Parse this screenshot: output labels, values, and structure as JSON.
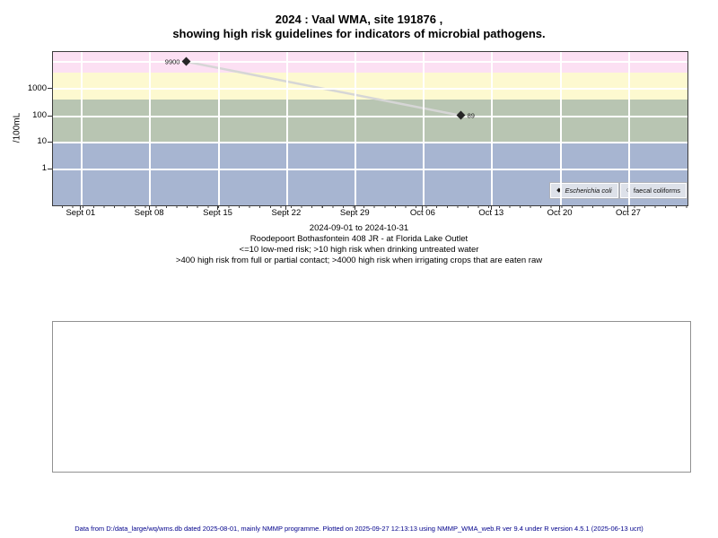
{
  "title": {
    "line1": "2024 : Vaal WMA, site 191876 ,",
    "line2": "showing high risk guidelines for indicators of microbial pathogens."
  },
  "subtitle": {
    "line1": "2024-09-01 to 2024-10-31",
    "line2": "Roodepoort Bothasfontein 408 JR - at Florida Lake Outlet",
    "line3": "<=10 low-med risk; >10 high risk when drinking untreated water",
    "line4": ">400 high risk from full or partial contact; >4000 high risk when irrigating crops that are eaten raw"
  },
  "footer": {
    "text": "Data from D:/data_large/wq/wms.db dated 2025-08-01, mainly NMMP programme. Plotted on 2025-09-27 12:13:13 using NMMP_WMA_web.R ver 9.4 under R version 4.5.1 (2025-06-13 ucrt)",
    "color": "#00008B"
  },
  "chart_data": {
    "type": "scatter",
    "title": "2024 : Vaal WMA, site 191876 , showing high risk guidelines for indicators of microbial pathogens.",
    "xlabel": "",
    "ylabel": "/100mL",
    "y_scale": "log10",
    "x_range": "2024-09-01 to 2024-10-31",
    "y_ticks": [
      {
        "label": "1000",
        "pct": 24.0
      },
      {
        "label": "100",
        "pct": 42.1
      },
      {
        "label": "10",
        "pct": 58.8
      },
      {
        "label": "1",
        "pct": 76.6
      }
    ],
    "x_ticks": [
      {
        "label": "Sept 01",
        "pct": 4.5
      },
      {
        "label": "Sept 08",
        "pct": 15.3
      },
      {
        "label": "Sept 15",
        "pct": 26.1
      },
      {
        "label": "Sept 22",
        "pct": 36.9
      },
      {
        "label": "Sept 29",
        "pct": 47.7
      },
      {
        "label": "Oct 06",
        "pct": 58.4
      },
      {
        "label": "Oct 13",
        "pct": 69.2
      },
      {
        "label": "Oct 20",
        "pct": 80.0
      },
      {
        "label": "Oct 27",
        "pct": 90.8
      }
    ],
    "h_gridlines_pct": [
      6.4,
      24.0,
      42.1,
      58.8,
      76.6
    ],
    "v_gridlines_pct": [
      4.5,
      15.3,
      26.1,
      36.9,
      47.7,
      58.4,
      69.2,
      80.0,
      90.8
    ],
    "bands": [
      {
        "name": "above-4000-irrigation-risk",
        "range": ">4000",
        "color": "#fce0f3",
        "top_pct": 0,
        "height_pct": 13.5
      },
      {
        "name": "400-4000-contact-risk",
        "range": "400-4000",
        "color": "#fdf9d0",
        "top_pct": 13.5,
        "height_pct": 17.5
      },
      {
        "name": "10-400-drinking-risk",
        "range": "10-400",
        "color": "#b8c5b2",
        "top_pct": 31.0,
        "height_pct": 27.8
      },
      {
        "name": "below-10-low-med-risk",
        "range": "<=10",
        "color": "#a7b5d1",
        "top_pct": 58.8,
        "height_pct": 41.2
      }
    ],
    "line_color": "#d6d6d6",
    "series": [
      {
        "name": "Escherichia coli",
        "marker": "filled-diamond",
        "points": [
          {
            "date": "2024-09-12",
            "value": 9900,
            "label": "9900",
            "x_pct": 21.0,
            "y_pct": 6.3,
            "label_side": "left"
          },
          {
            "date": "2024-10-10",
            "value": 89,
            "label": "89",
            "x_pct": 64.3,
            "y_pct": 41.5,
            "label_side": "right"
          }
        ]
      },
      {
        "name": "faecal coliforms",
        "marker": "open-circle",
        "points": []
      }
    ],
    "legend": [
      {
        "marker": "◆",
        "label": "Escherichia coli"
      },
      {
        "marker": "○",
        "label": "faecal coliforms"
      }
    ]
  }
}
